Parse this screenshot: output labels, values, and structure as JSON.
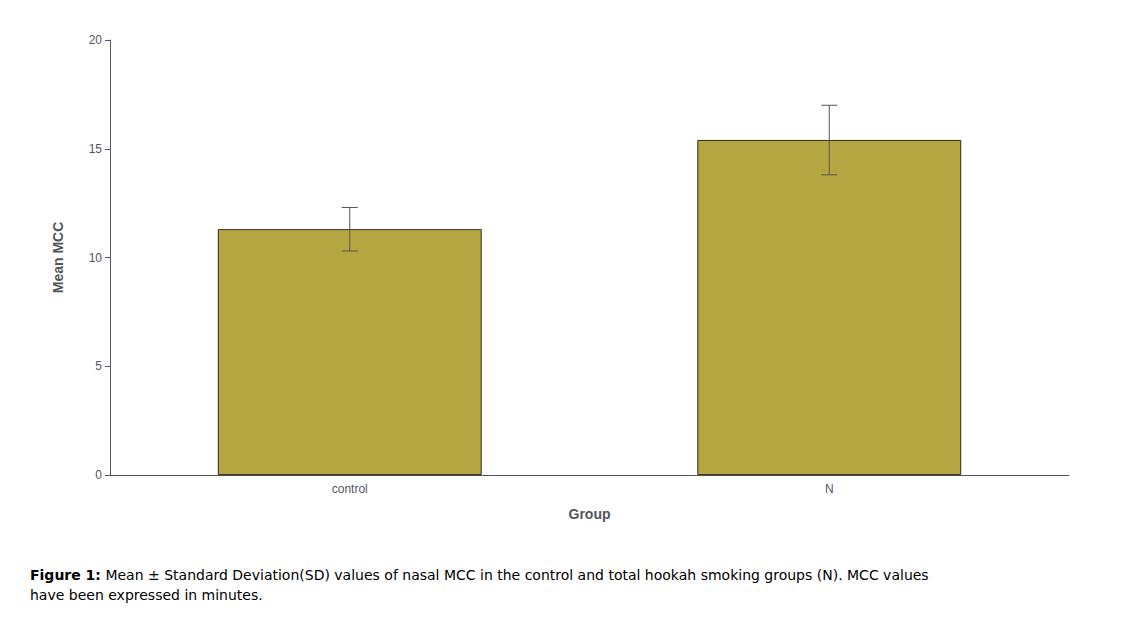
{
  "chart_data": {
    "type": "bar",
    "categories": [
      "control",
      "N"
    ],
    "values": [
      11.3,
      15.4
    ],
    "errors_upper": [
      1.0,
      1.6
    ],
    "errors_lower": [
      1.0,
      1.6
    ],
    "color": "#b5a642",
    "ylabel": "Mean MCC",
    "xlabel": "Group",
    "ylim": [
      0,
      20
    ],
    "yticks": [
      0,
      5,
      10,
      15,
      20
    ],
    "grid": false,
    "caption_bold": "Figure 1:",
    "caption": " Mean ± Standard Deviation(SD) values of nasal MCC in the control and total hookah smoking groups (N). MCC values have been expressed in minutes."
  }
}
